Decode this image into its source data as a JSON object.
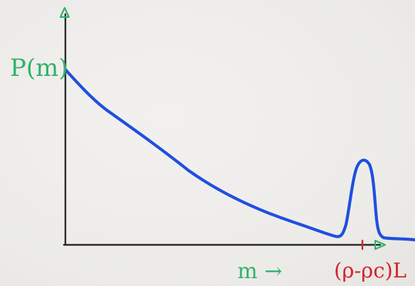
{
  "chart_data": {
    "type": "line",
    "ylabel": "P(m)",
    "xlabel": "m →",
    "x_tick_labels": [
      "(ρ-ρc)L"
    ],
    "series": [
      {
        "color": "#1f4fe0",
        "curve": "decreasing from y-axis toward zero, then a narrow peak near x = (ρ-ρc)L"
      }
    ],
    "grid": false,
    "axes_color": "#2a2a2a",
    "axis_arrow_color": "#2fb36a",
    "ylabel_color": "#2fb36a",
    "xlabel_color": "#2fb36a",
    "tick_label_color": "#d4242f"
  }
}
